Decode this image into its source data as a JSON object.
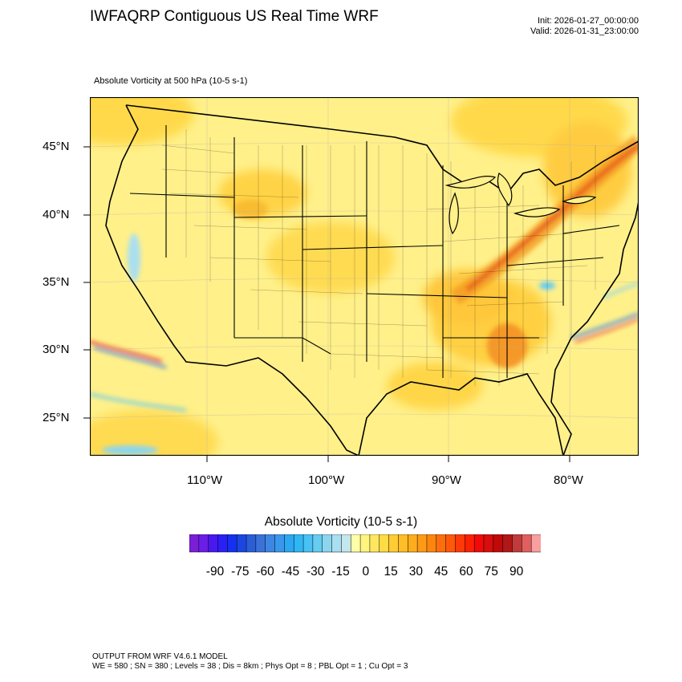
{
  "header": {
    "title": "IWFAQRP Contiguous US Real Time WRF",
    "init": "Init: 2026-01-27_00:00:00",
    "valid": "Valid: 2026-01-31_23:00:00",
    "field_label": "Absolute Vorticity at 500 hPa   (10-5 s-1)"
  },
  "map": {
    "lat_labels": [
      "45°N",
      "40°N",
      "35°N",
      "30°N",
      "25°N"
    ],
    "lon_labels": [
      "110°W",
      "100°W",
      "90°W",
      "80°W"
    ],
    "background_color": "#fff08a",
    "feature_color": "#f6b52a",
    "max_color": "#e8561c"
  },
  "colorbar": {
    "title": "Absolute Vorticity  (10-5 s-1)",
    "labels": [
      "-90",
      "-75",
      "-60",
      "-45",
      "-30",
      "-15",
      "0",
      "15",
      "30",
      "45",
      "60",
      "75",
      "90"
    ],
    "colors": [
      "#7a1fd6",
      "#6a1ee8",
      "#4b17f0",
      "#2a20f5",
      "#1530f0",
      "#1c46e0",
      "#2b5ed6",
      "#3a72da",
      "#3d86e4",
      "#3a98ec",
      "#2aa8f2",
      "#30b6f5",
      "#48c2f5",
      "#66ccf0",
      "#8bd6ee",
      "#aadff0",
      "#c4e6ef",
      "#ffffa8",
      "#fff480",
      "#ffe860",
      "#ffdb45",
      "#ffcc33",
      "#ffbd26",
      "#ffad1c",
      "#ff9a14",
      "#ff850f",
      "#ff6e0c",
      "#ff5809",
      "#ff3a06",
      "#ff1f04",
      "#f00a0a",
      "#d80d0d",
      "#c00a0a",
      "#b01818",
      "#c23a3a",
      "#e06060",
      "#f8a0a0"
    ]
  },
  "footer": {
    "line1": "OUTPUT FROM WRF V4.6.1 MODEL",
    "line2": "WE = 580 ; SN = 380 ; Levels = 38 ; Dis = 8km ; Phys Opt = 8 ; PBL Opt = 1 ; Cu Opt = 3"
  }
}
